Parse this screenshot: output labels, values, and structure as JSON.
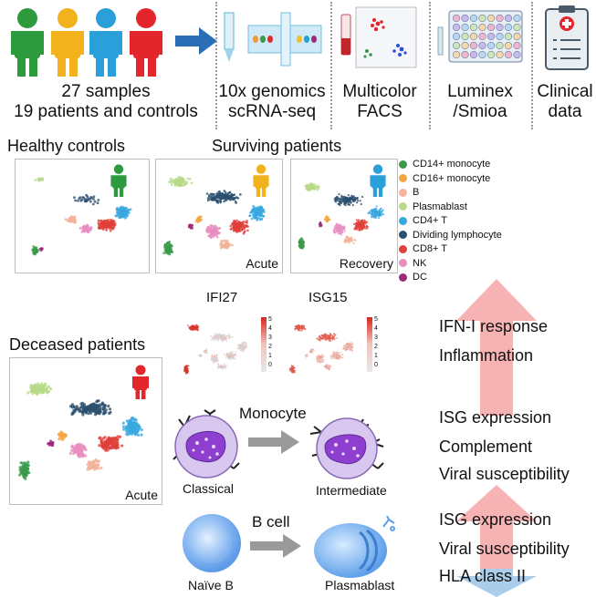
{
  "header": {
    "samples_line1": "27 samples",
    "samples_line2": "19 patients and controls",
    "tenx_line1": "10x genomics",
    "tenx_line2": "scRNA-seq",
    "facs_line1": "Multicolor",
    "facs_line2": "FACS",
    "luminex_line1": "Luminex",
    "luminex_line2": "/Smioa",
    "clinical_line1": "Clinical",
    "clinical_line2": "data"
  },
  "groups": {
    "healthy": "Healthy controls",
    "surviving": "Surviving patients",
    "deceased": "Deceased patients",
    "acute1": "Acute",
    "recovery": "Recovery",
    "acute2": "Acute"
  },
  "legend": [
    {
      "label": "CD14+ monocyte",
      "color": "#3a9a4a"
    },
    {
      "label": "CD16+ monocyte",
      "color": "#f2a640"
    },
    {
      "label": "B",
      "color": "#f4b39a"
    },
    {
      "label": "Plasmablast",
      "color": "#b8d98a"
    },
    {
      "label": "CD4+ T",
      "color": "#3aa8e0"
    },
    {
      "label": "Dividing lymphocyte",
      "color": "#2c4f6e"
    },
    {
      "label": "CD8+ T",
      "color": "#e0403a"
    },
    {
      "label": "NK",
      "color": "#e98fc0"
    },
    {
      "label": "DC",
      "color": "#9b2c7a"
    }
  ],
  "features": {
    "ifi27": "IFI27",
    "isg15": "ISG15",
    "scale_ticks": [
      "5",
      "4",
      "3",
      "2",
      "1",
      "0"
    ]
  },
  "monocyte": {
    "title": "Monocyte",
    "from": "Classical",
    "to": "Intermediate"
  },
  "bcell": {
    "title": "B cell",
    "from": "Naïve B",
    "to": "Plasmablast"
  },
  "right": {
    "r1": "IFN-I response",
    "r2": "Inflammation",
    "r3": "ISG expression",
    "r4": "Complement",
    "r5": "Viral susceptibility",
    "r6": "ISG expression",
    "r7": "Viral susceptibility",
    "r8": "HLA class II"
  },
  "colors": {
    "person_green": "#2e9a3e",
    "person_yellow": "#f2b21c",
    "person_blue": "#2b9fd9",
    "person_red": "#e3262b",
    "arrow_blue": "#2a6fb5",
    "up_arrow": "#f6a6a6",
    "down_arrow": "#a9cdea"
  }
}
